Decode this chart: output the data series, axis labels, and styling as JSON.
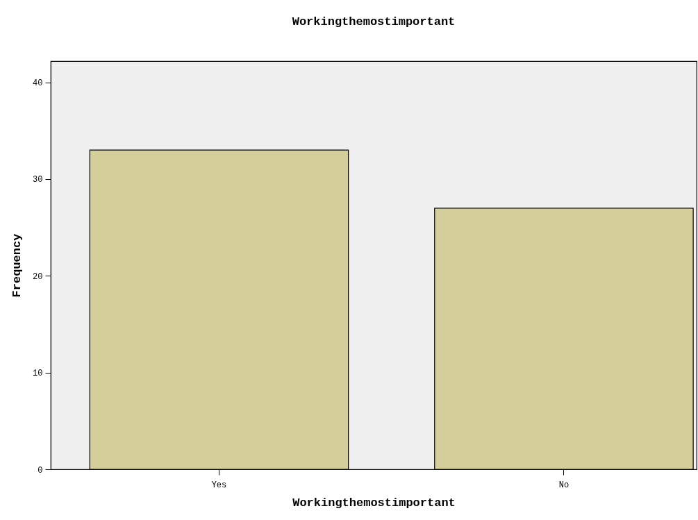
{
  "chart_data": {
    "type": "bar",
    "title": "Workingthemostimportant",
    "xlabel": "Workingthemostimportant",
    "ylabel": "Frequency",
    "categories": [
      "Yes",
      "No"
    ],
    "values": [
      33,
      27
    ],
    "color": "#d3ce9a",
    "ylim": [
      0,
      42.2
    ],
    "yticks": [
      0,
      10,
      20,
      30,
      40
    ]
  }
}
